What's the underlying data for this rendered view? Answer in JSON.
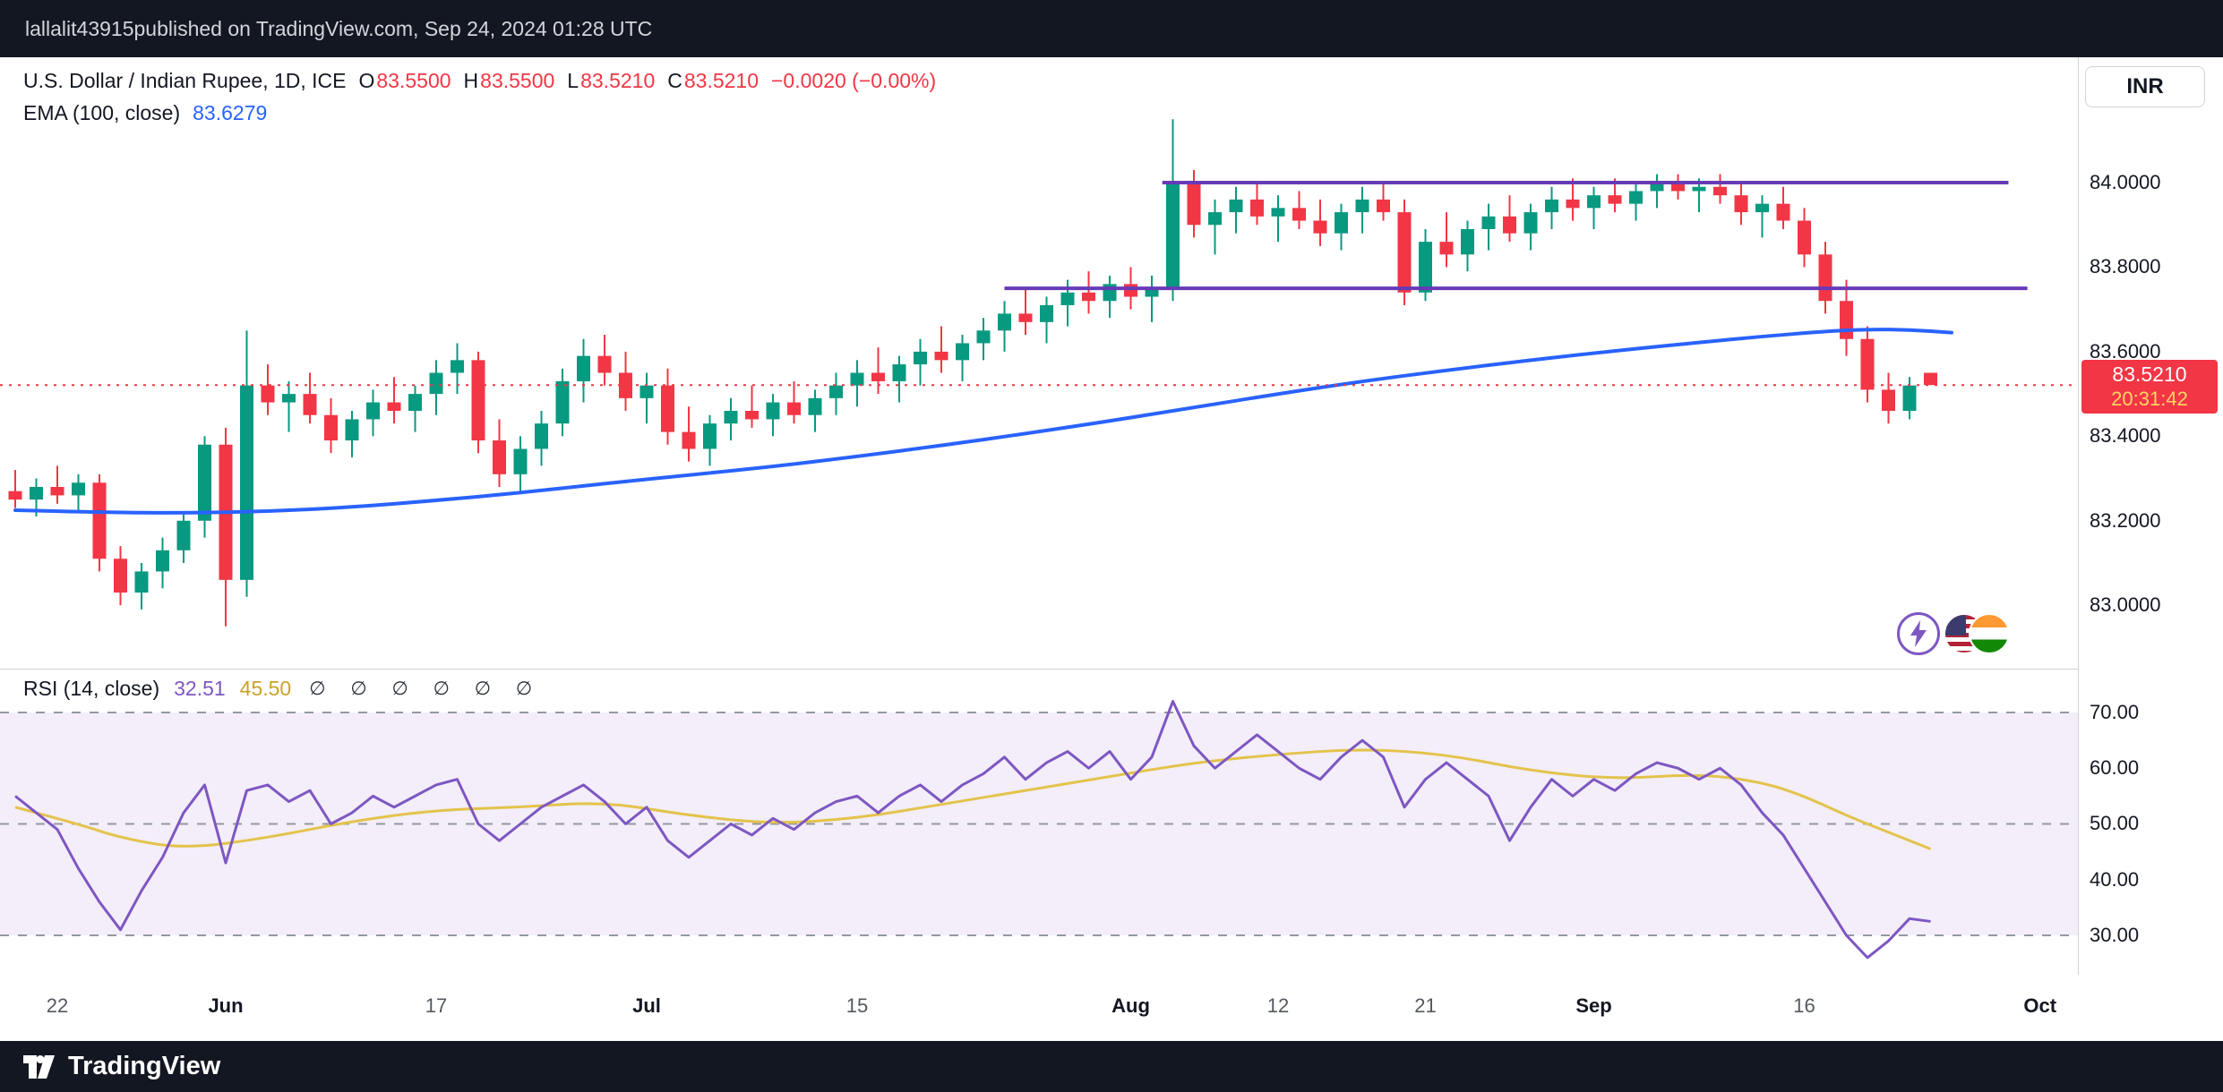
{
  "header": {
    "username": "lallalit43915",
    "publish_suffix": " published on TradingView.com, Sep 24, 2024 01:28 UTC"
  },
  "symbol_info": {
    "title": "U.S. Dollar / Indian Rupee, 1D, ICE",
    "ohlc": [
      {
        "k": "O",
        "v": "83.5500"
      },
      {
        "k": "H",
        "v": "83.5500"
      },
      {
        "k": "L",
        "v": "83.5210"
      },
      {
        "k": "C",
        "v": "83.5210"
      }
    ],
    "change": "−0.0020 (−0.00%)"
  },
  "ema_legend": {
    "label": "EMA (100, close)",
    "value": "83.6279"
  },
  "rsi_legend": {
    "label": "RSI (14, close)",
    "value": "32.51",
    "ma_value": "45.50",
    "muted_symbols": "∅ ∅ ∅ ∅ ∅ ∅"
  },
  "currency_button": "INR",
  "price_badge": {
    "price": "83.5210",
    "countdown": "20:31:42"
  },
  "footer": {
    "brand": "TradingView"
  },
  "chart_data": {
    "type": "candlestick",
    "title": "U.S. Dollar / Indian Rupee, 1D, ICE",
    "colors": {
      "up": "#089981",
      "down": "#f23645",
      "ema": "#2962ff",
      "trendline": "#673ab7",
      "rsi": "#7e57c2",
      "rsi_ma": "#e3c34c",
      "rsi_band": "#f3eef9",
      "grid": "#9598a1"
    },
    "price_pane": {
      "ylim": [
        82.85,
        84.2966
      ],
      "last_price": 83.521,
      "y_ticks": [
        {
          "label": "84.0000",
          "value": 84.0
        },
        {
          "label": "83.8000",
          "value": 83.8
        },
        {
          "label": "83.6000",
          "value": 83.6
        },
        {
          "label": "83.4000",
          "value": 83.4
        },
        {
          "label": "83.2000",
          "value": 83.2
        },
        {
          "label": "83.0000",
          "value": 83.0
        }
      ],
      "candles": [
        [
          83.27,
          83.32,
          83.23,
          83.25
        ],
        [
          83.25,
          83.3,
          83.21,
          83.28
        ],
        [
          83.28,
          83.33,
          83.24,
          83.26
        ],
        [
          83.26,
          83.31,
          83.22,
          83.29
        ],
        [
          83.29,
          83.31,
          83.08,
          83.11
        ],
        [
          83.11,
          83.14,
          83.0,
          83.03
        ],
        [
          83.03,
          83.1,
          82.99,
          83.08
        ],
        [
          83.08,
          83.16,
          83.04,
          83.13
        ],
        [
          83.13,
          83.22,
          83.1,
          83.2
        ],
        [
          83.2,
          83.4,
          83.16,
          83.38
        ],
        [
          83.38,
          83.42,
          82.95,
          83.06
        ],
        [
          83.06,
          83.65,
          83.02,
          83.52
        ],
        [
          83.52,
          83.57,
          83.45,
          83.48
        ],
        [
          83.48,
          83.53,
          83.41,
          83.5
        ],
        [
          83.5,
          83.55,
          83.43,
          83.45
        ],
        [
          83.45,
          83.49,
          83.36,
          83.39
        ],
        [
          83.39,
          83.46,
          83.35,
          83.44
        ],
        [
          83.44,
          83.51,
          83.4,
          83.48
        ],
        [
          83.48,
          83.54,
          83.43,
          83.46
        ],
        [
          83.46,
          83.52,
          83.41,
          83.5
        ],
        [
          83.5,
          83.58,
          83.45,
          83.55
        ],
        [
          83.55,
          83.62,
          83.5,
          83.58
        ],
        [
          83.58,
          83.6,
          83.36,
          83.39
        ],
        [
          83.39,
          83.44,
          83.28,
          83.31
        ],
        [
          83.31,
          83.4,
          83.27,
          83.37
        ],
        [
          83.37,
          83.46,
          83.33,
          83.43
        ],
        [
          83.43,
          83.56,
          83.4,
          83.53
        ],
        [
          83.53,
          83.63,
          83.48,
          83.59
        ],
        [
          83.59,
          83.64,
          83.52,
          83.55
        ],
        [
          83.55,
          83.6,
          83.46,
          83.49
        ],
        [
          83.49,
          83.55,
          83.43,
          83.52
        ],
        [
          83.52,
          83.56,
          83.38,
          83.41
        ],
        [
          83.41,
          83.47,
          83.34,
          83.37
        ],
        [
          83.37,
          83.45,
          83.33,
          83.43
        ],
        [
          83.43,
          83.49,
          83.39,
          83.46
        ],
        [
          83.46,
          83.52,
          83.42,
          83.44
        ],
        [
          83.44,
          83.5,
          83.4,
          83.48
        ],
        [
          83.48,
          83.53,
          83.43,
          83.45
        ],
        [
          83.45,
          83.51,
          83.41,
          83.49
        ],
        [
          83.49,
          83.55,
          83.45,
          83.52
        ],
        [
          83.52,
          83.58,
          83.47,
          83.55
        ],
        [
          83.55,
          83.61,
          83.5,
          83.53
        ],
        [
          83.53,
          83.59,
          83.48,
          83.57
        ],
        [
          83.57,
          83.63,
          83.52,
          83.6
        ],
        [
          83.6,
          83.66,
          83.55,
          83.58
        ],
        [
          83.58,
          83.64,
          83.53,
          83.62
        ],
        [
          83.62,
          83.68,
          83.58,
          83.65
        ],
        [
          83.65,
          83.72,
          83.6,
          83.69
        ],
        [
          83.69,
          83.75,
          83.64,
          83.67
        ],
        [
          83.67,
          83.73,
          83.62,
          83.71
        ],
        [
          83.71,
          83.77,
          83.66,
          83.74
        ],
        [
          83.74,
          83.79,
          83.69,
          83.72
        ],
        [
          83.72,
          83.78,
          83.68,
          83.76
        ],
        [
          83.76,
          83.8,
          83.7,
          83.73
        ],
        [
          83.73,
          83.78,
          83.67,
          83.75
        ],
        [
          83.75,
          84.15,
          83.72,
          84.0
        ],
        [
          84.0,
          84.03,
          83.87,
          83.9
        ],
        [
          83.9,
          83.96,
          83.83,
          83.93
        ],
        [
          83.93,
          83.99,
          83.88,
          83.96
        ],
        [
          83.96,
          84.0,
          83.9,
          83.92
        ],
        [
          83.92,
          83.97,
          83.86,
          83.94
        ],
        [
          83.94,
          83.98,
          83.89,
          83.91
        ],
        [
          83.91,
          83.96,
          83.85,
          83.88
        ],
        [
          83.88,
          83.95,
          83.84,
          83.93
        ],
        [
          83.93,
          83.99,
          83.88,
          83.96
        ],
        [
          83.96,
          84.0,
          83.91,
          83.93
        ],
        [
          83.93,
          83.96,
          83.71,
          83.74
        ],
        [
          83.74,
          83.89,
          83.72,
          83.86
        ],
        [
          83.86,
          83.93,
          83.8,
          83.83
        ],
        [
          83.83,
          83.91,
          83.79,
          83.89
        ],
        [
          83.89,
          83.95,
          83.84,
          83.92
        ],
        [
          83.92,
          83.97,
          83.86,
          83.88
        ],
        [
          83.88,
          83.95,
          83.84,
          83.93
        ],
        [
          83.93,
          83.99,
          83.89,
          83.96
        ],
        [
          83.96,
          84.01,
          83.91,
          83.94
        ],
        [
          83.94,
          83.99,
          83.89,
          83.97
        ],
        [
          83.97,
          84.01,
          83.93,
          83.95
        ],
        [
          83.95,
          84.0,
          83.91,
          83.98
        ],
        [
          83.98,
          84.02,
          83.94,
          84.0
        ],
        [
          84.0,
          84.02,
          83.96,
          83.98
        ],
        [
          83.98,
          84.01,
          83.93,
          83.99
        ],
        [
          83.99,
          84.02,
          83.95,
          83.97
        ],
        [
          83.97,
          84.0,
          83.9,
          83.93
        ],
        [
          83.93,
          83.97,
          83.87,
          83.95
        ],
        [
          83.95,
          83.99,
          83.89,
          83.91
        ],
        [
          83.91,
          83.94,
          83.8,
          83.83
        ],
        [
          83.83,
          83.86,
          83.69,
          83.72
        ],
        [
          83.72,
          83.77,
          83.59,
          83.63
        ],
        [
          83.63,
          83.66,
          83.48,
          83.51
        ],
        [
          83.51,
          83.55,
          83.43,
          83.46
        ],
        [
          83.46,
          83.54,
          83.44,
          83.52
        ],
        [
          83.55,
          83.55,
          83.521,
          83.521
        ]
      ],
      "ema_points": [
        [
          0,
          83.225
        ],
        [
          4,
          83.22
        ],
        [
          8,
          83.218
        ],
        [
          12,
          83.222
        ],
        [
          16,
          83.232
        ],
        [
          20,
          83.248
        ],
        [
          24,
          83.266
        ],
        [
          28,
          83.288
        ],
        [
          32,
          83.308
        ],
        [
          36,
          83.328
        ],
        [
          40,
          83.352
        ],
        [
          44,
          83.378
        ],
        [
          48,
          83.406
        ],
        [
          52,
          83.436
        ],
        [
          56,
          83.468
        ],
        [
          60,
          83.5
        ],
        [
          64,
          83.53
        ],
        [
          68,
          83.556
        ],
        [
          72,
          83.58
        ],
        [
          76,
          83.602
        ],
        [
          80,
          83.622
        ],
        [
          83,
          83.636
        ],
        [
          86,
          83.648
        ],
        [
          88,
          83.653
        ],
        [
          90,
          83.652
        ],
        [
          92,
          83.645
        ]
      ],
      "trendlines": [
        {
          "price": 84.0,
          "i1": 54.5,
          "i2": 94.7
        },
        {
          "price": 83.75,
          "i1": 47.0,
          "i2": 95.6
        }
      ]
    },
    "rsi_pane": {
      "ylim": [
        22.93,
        77.87
      ],
      "band": [
        30,
        70
      ],
      "grid_values": [
        70,
        50,
        30
      ],
      "y_ticks": [
        {
          "label": "70.00",
          "value": 70
        },
        {
          "label": "60.00",
          "value": 60
        },
        {
          "label": "50.00",
          "value": 50
        },
        {
          "label": "40.00",
          "value": 40
        },
        {
          "label": "30.00",
          "value": 30
        }
      ],
      "rsi_values": [
        55,
        52,
        49,
        42,
        36,
        31,
        38,
        44,
        52,
        57,
        43,
        56,
        57,
        54,
        56,
        50,
        52,
        55,
        53,
        55,
        57,
        58,
        50,
        47,
        50,
        53,
        55,
        57,
        54,
        50,
        53,
        47,
        44,
        47,
        50,
        48,
        51,
        49,
        52,
        54,
        55,
        52,
        55,
        57,
        54,
        57,
        59,
        62,
        58,
        61,
        63,
        60,
        63,
        58,
        62,
        72,
        64,
        60,
        63,
        66,
        63,
        60,
        58,
        62,
        65,
        62,
        53,
        58,
        61,
        58,
        55,
        47,
        53,
        58,
        55,
        58,
        56,
        59,
        61,
        60,
        58,
        60,
        57,
        52,
        48,
        42,
        36,
        30,
        26,
        29,
        33,
        32.5
      ],
      "rsi_ma_points": [
        [
          0,
          53
        ],
        [
          3,
          50
        ],
        [
          5,
          47.5
        ],
        [
          8,
          45.5
        ],
        [
          12,
          47.5
        ],
        [
          16,
          50.5
        ],
        [
          20,
          52.5
        ],
        [
          24,
          53
        ],
        [
          28,
          54
        ],
        [
          32,
          51.5
        ],
        [
          36,
          50
        ],
        [
          40,
          51
        ],
        [
          44,
          53.5
        ],
        [
          48,
          56
        ],
        [
          52,
          58.5
        ],
        [
          56,
          61
        ],
        [
          60,
          62.5
        ],
        [
          64,
          63.5
        ],
        [
          68,
          62.5
        ],
        [
          72,
          59.5
        ],
        [
          76,
          58
        ],
        [
          80,
          59
        ],
        [
          83,
          57.5
        ],
        [
          85,
          55
        ],
        [
          87,
          51.5
        ],
        [
          89,
          48.5
        ],
        [
          91,
          45.5
        ]
      ]
    },
    "time_axis": {
      "labels": [
        {
          "label": "22",
          "i": 2,
          "major": false
        },
        {
          "label": "Jun",
          "i": 10,
          "major": true
        },
        {
          "label": "17",
          "i": 20,
          "major": false
        },
        {
          "label": "Jul",
          "i": 30,
          "major": true
        },
        {
          "label": "15",
          "i": 40,
          "major": false
        },
        {
          "label": "Aug",
          "i": 53,
          "major": true
        },
        {
          "label": "12",
          "i": 60,
          "major": false
        },
        {
          "label": "21",
          "i": 67,
          "major": false
        },
        {
          "label": "Sep",
          "i": 75,
          "major": true
        },
        {
          "label": "16",
          "i": 85,
          "major": false
        },
        {
          "label": "Oct",
          "i": 96.2,
          "major": true
        }
      ]
    }
  }
}
